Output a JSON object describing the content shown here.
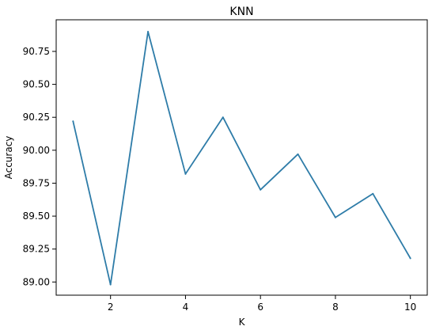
{
  "chart_data": {
    "type": "line",
    "title": "KNN",
    "xlabel": "K",
    "ylabel": "Accuracy",
    "x": [
      1,
      2,
      3,
      4,
      5,
      6,
      7,
      8,
      9,
      10
    ],
    "series": [
      {
        "values": [
          90.22,
          88.98,
          90.9,
          89.82,
          90.25,
          89.7,
          89.97,
          89.49,
          89.67,
          89.18
        ]
      }
    ],
    "xlim": [
      0.55,
      10.45
    ],
    "ylim": [
      88.9,
      90.99
    ],
    "x_ticks": [
      2,
      4,
      6,
      8,
      10
    ],
    "y_ticks": [
      89.0,
      89.25,
      89.5,
      89.75,
      90.0,
      90.25,
      90.5,
      90.75
    ],
    "x_tick_labels": [
      "2",
      "4",
      "6",
      "8",
      "10"
    ],
    "y_tick_labels": [
      "89.00",
      "89.25",
      "89.50",
      "89.75",
      "90.00",
      "90.25",
      "90.50",
      "90.75"
    ],
    "grid": false,
    "legend": "none",
    "line_color": "#2e7ca8"
  }
}
